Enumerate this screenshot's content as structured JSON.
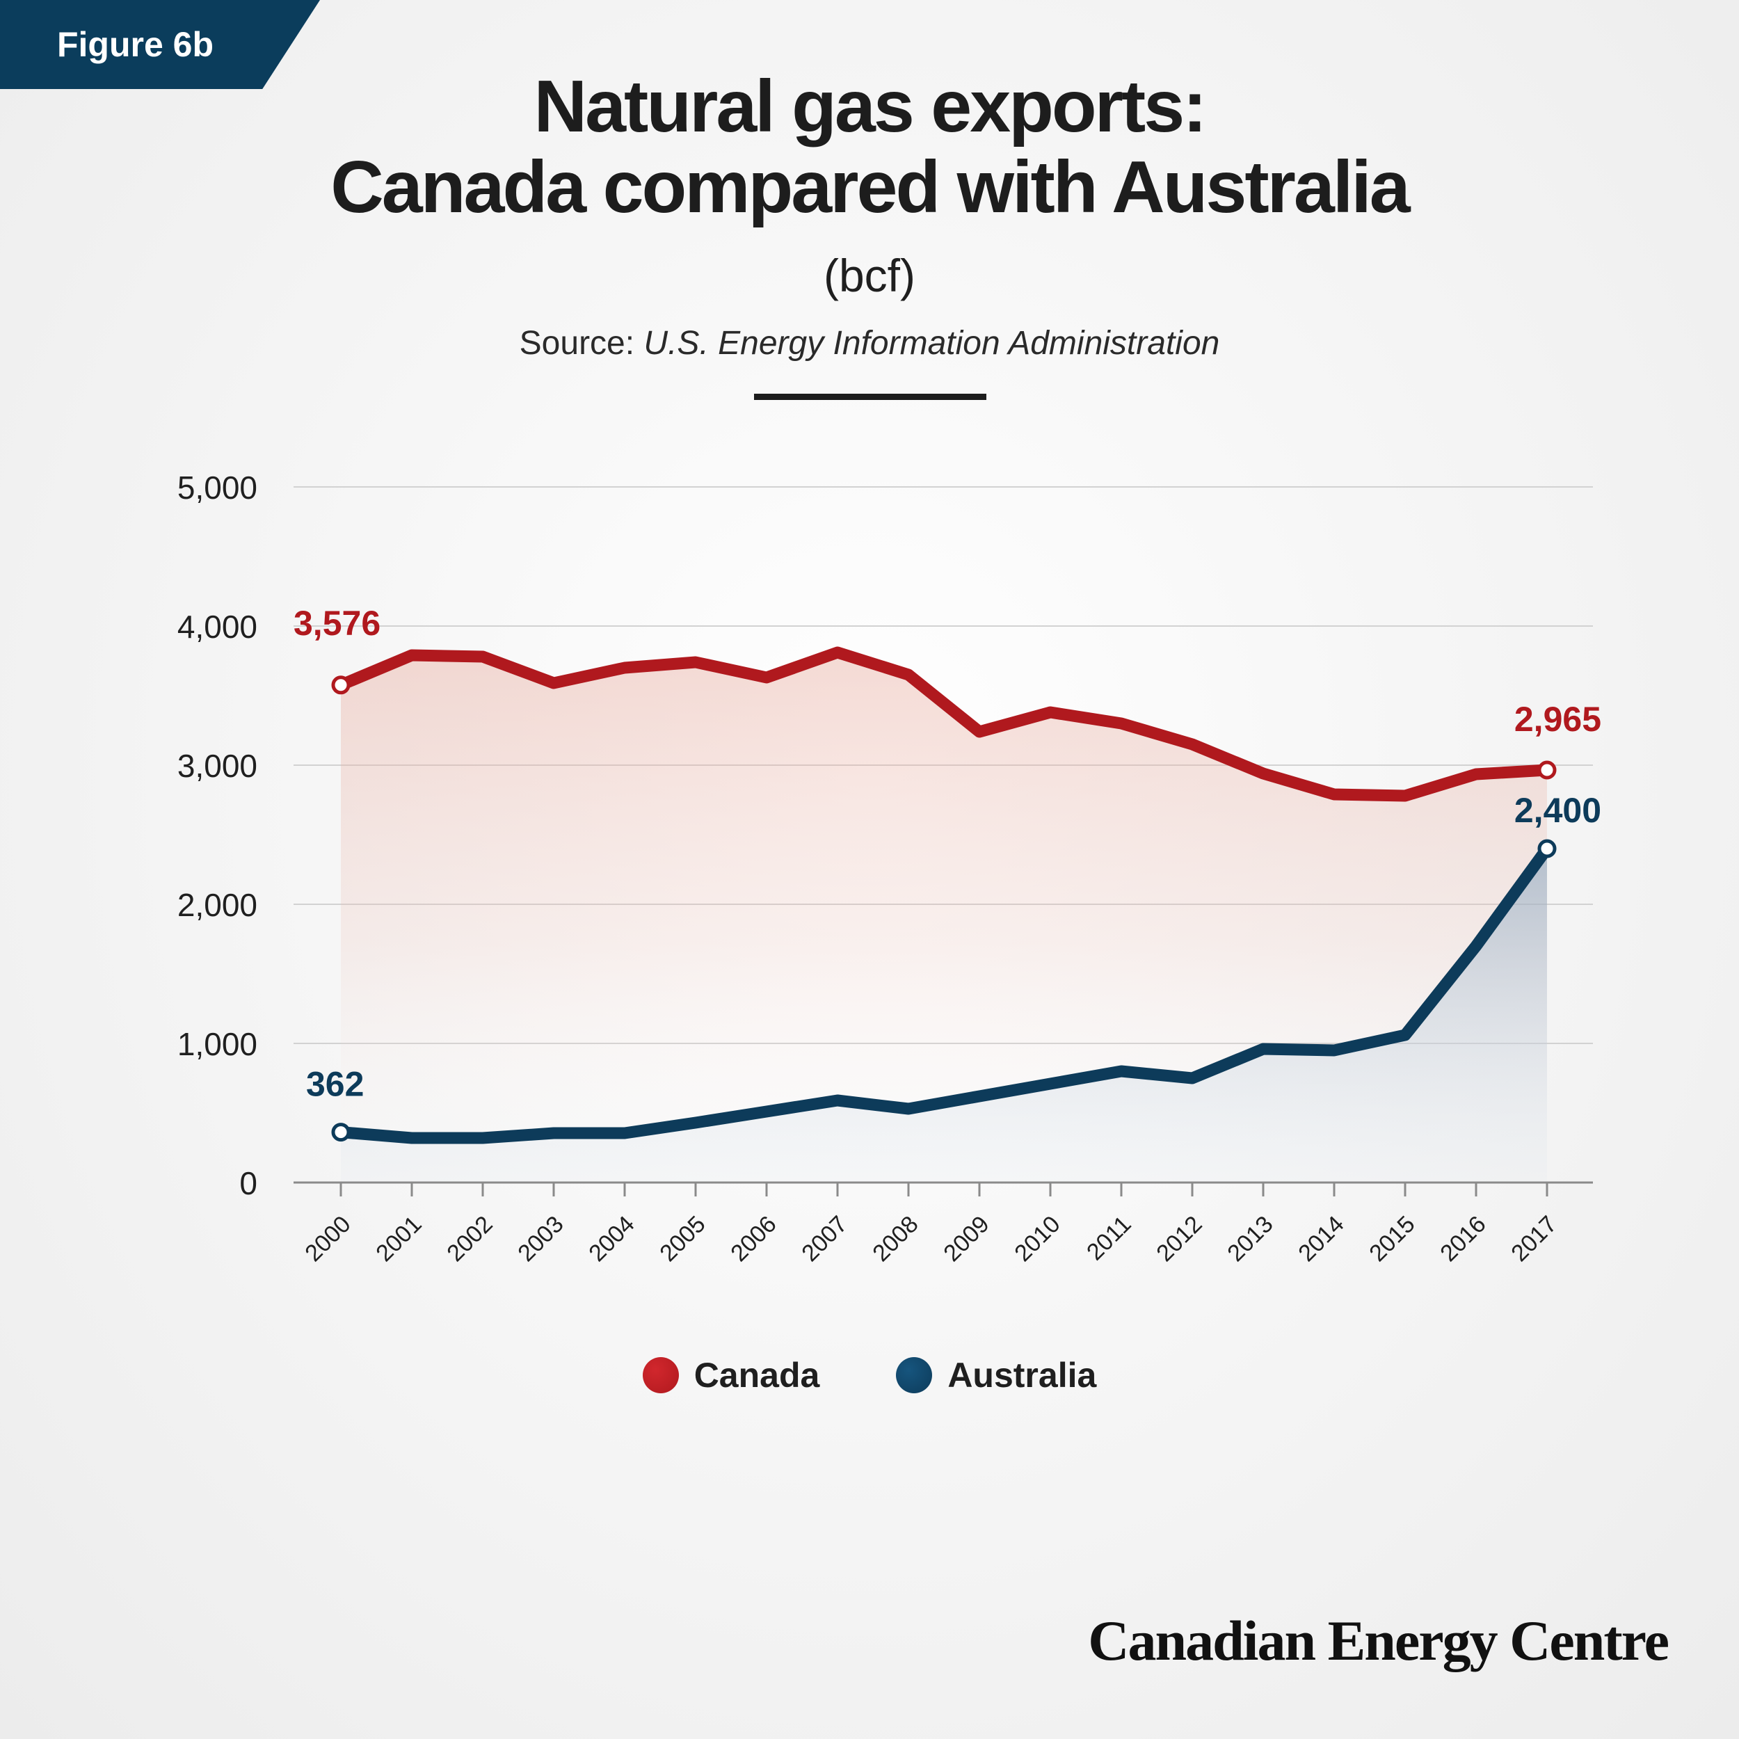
{
  "figure_label": "Figure 6b",
  "title_line1": "Natural gas exports:",
  "title_line2": "Canada compared with Australia",
  "unit": "(bcf)",
  "source_prefix": "Source: ",
  "source_name": "U.S. Energy Information Administration",
  "brand": "Canadian Energy Centre",
  "colors": {
    "canada": "#b0191e",
    "australia": "#0d3b5a"
  },
  "chart_data": {
    "type": "line",
    "title": "Natural gas exports: Canada compared with Australia",
    "ylabel": "(bcf)",
    "xlabel": "",
    "ylim": [
      0,
      5000
    ],
    "yticks": [
      0,
      1000,
      2000,
      3000,
      4000,
      5000
    ],
    "ytick_labels": [
      "0",
      "1,000",
      "2,000",
      "3,000",
      "4,000",
      "5,000"
    ],
    "grid": true,
    "legend": "bottom-center",
    "x": [
      "2000",
      "2001",
      "2002",
      "2003",
      "2004",
      "2005",
      "2006",
      "2007",
      "2008",
      "2009",
      "2010",
      "2011",
      "2012",
      "2013",
      "2014",
      "2015",
      "2016",
      "2017"
    ],
    "series": [
      {
        "name": "Canada",
        "color": "#b0191e",
        "values": [
          3576,
          3790,
          3780,
          3590,
          3700,
          3740,
          3630,
          3810,
          3650,
          3240,
          3380,
          3300,
          3150,
          2940,
          2790,
          2780,
          2935,
          2965
        ],
        "start_label": "3,576",
        "end_label": "2,965"
      },
      {
        "name": "Australia",
        "color": "#0d3b5a",
        "values": [
          362,
          320,
          320,
          355,
          355,
          430,
          510,
          590,
          530,
          620,
          710,
          800,
          750,
          960,
          950,
          1060,
          1700,
          2400
        ],
        "start_label": "362",
        "end_label": "2,400"
      }
    ]
  }
}
